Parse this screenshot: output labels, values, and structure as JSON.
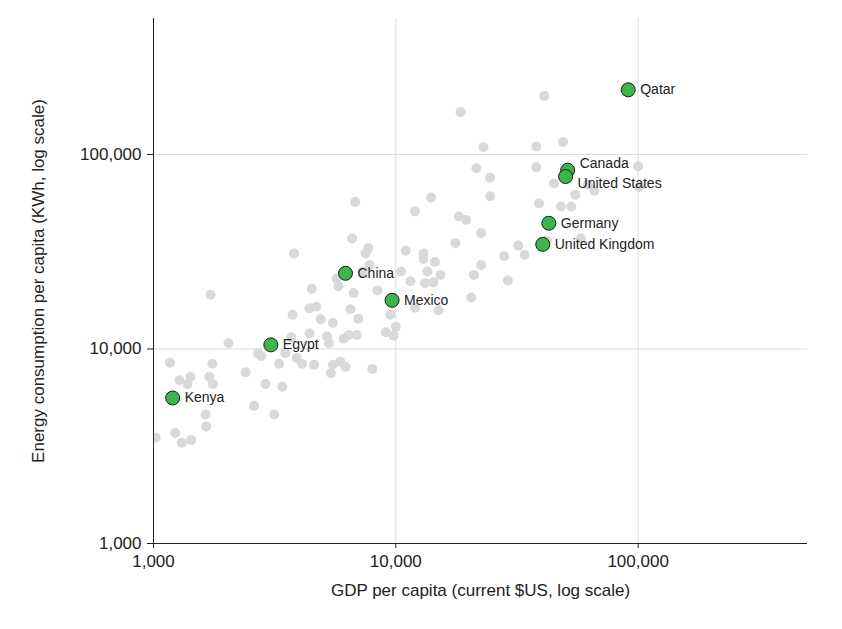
{
  "chart_data": {
    "type": "scatter",
    "x_label": "GDP per capita (current $US, log scale)",
    "y_label": "Energy consumption per capita (KWh, log scale)",
    "log": true,
    "grid": true,
    "xlim": [
      1000,
      500000
    ],
    "ylim": [
      1000,
      500000
    ],
    "xticks": [
      {
        "value": 1000,
        "label": "1,000"
      },
      {
        "value": 10000,
        "label": "10,000"
      },
      {
        "value": 100000,
        "label": "100,000"
      }
    ],
    "yticks": [
      {
        "value": 1000,
        "label": "1,000"
      },
      {
        "value": 10000,
        "label": "10,000"
      },
      {
        "value": 100000,
        "label": "100,000"
      }
    ],
    "series": [
      {
        "color": "#d9d9d9",
        "marker": "circle",
        "x": [
          1020,
          1170,
          1230,
          1280,
          1310,
          1380,
          1420,
          1430,
          1640,
          1650,
          1700,
          1720,
          1750,
          1760,
          2040,
          2400,
          2600,
          2700,
          2780,
          2900,
          3150,
          3300,
          3400,
          3500,
          3700,
          3750,
          3800,
          3900,
          4100,
          4400,
          4400,
          4500,
          4600,
          4700,
          4900,
          5200,
          5300,
          5400,
          5500,
          5500,
          5700,
          5800,
          5900,
          6100,
          6200,
          6400,
          6500,
          6600,
          6700,
          6800,
          6900,
          7000,
          7300,
          7500,
          7700,
          7800,
          8000,
          8400,
          9100,
          9500,
          9800,
          10000,
          10500,
          11000,
          11500,
          12000,
          12000,
          13000,
          13000,
          13200,
          13500,
          14000,
          14300,
          14500,
          15000,
          15300,
          17600,
          18200,
          18500,
          19500,
          20500,
          21000,
          21500,
          22500,
          22500,
          23000,
          24500,
          24500,
          28000,
          29000,
          32000,
          34000,
          38000,
          38000,
          39000,
          41000,
          42000,
          45000,
          48000,
          49000,
          51000,
          53000,
          55000,
          58000,
          62000,
          66000,
          100000,
          101000
        ],
        "y": [
          3500,
          8500,
          3700,
          6900,
          3300,
          6600,
          7200,
          3400,
          4600,
          4000,
          7200,
          19000,
          8400,
          6600,
          10700,
          7600,
          5100,
          9500,
          9200,
          6600,
          4600,
          8400,
          6400,
          9500,
          11500,
          15000,
          31000,
          9000,
          8400,
          12000,
          16200,
          20400,
          8300,
          16500,
          14200,
          11600,
          10700,
          7500,
          8300,
          13600,
          23000,
          21000,
          8600,
          11300,
          8100,
          11800,
          16000,
          37000,
          19400,
          57000,
          11800,
          14300,
          25000,
          31000,
          33000,
          27000,
          7900,
          20000,
          12200,
          15000,
          11700,
          13000,
          25000,
          32000,
          22300,
          16300,
          51000,
          29000,
          31000,
          21800,
          25000,
          60000,
          22000,
          28000,
          15800,
          24000,
          35000,
          48000,
          165000,
          46000,
          18400,
          24000,
          85000,
          39500,
          27000,
          109000,
          76000,
          61000,
          30000,
          22500,
          34000,
          30500,
          110000,
          86000,
          56000,
          200000,
          36000,
          71000,
          54000,
          116000,
          86000,
          54000,
          62000,
          37000,
          70000,
          65000,
          87000,
          68000
        ]
      },
      {
        "color": "#3db54a",
        "marker": "circle",
        "labels": [
          "Kenya",
          "Egypt",
          "China",
          "Mexico",
          "Germany",
          "United Kingdom",
          "Canada",
          "United States",
          "Qatar"
        ],
        "x": [
          1200,
          3050,
          6200,
          9650,
          42800,
          40400,
          51200,
          50200,
          91000
        ],
        "y": [
          5600,
          10500,
          24500,
          17800,
          44300,
          34500,
          83000,
          77000,
          215000
        ]
      }
    ]
  }
}
